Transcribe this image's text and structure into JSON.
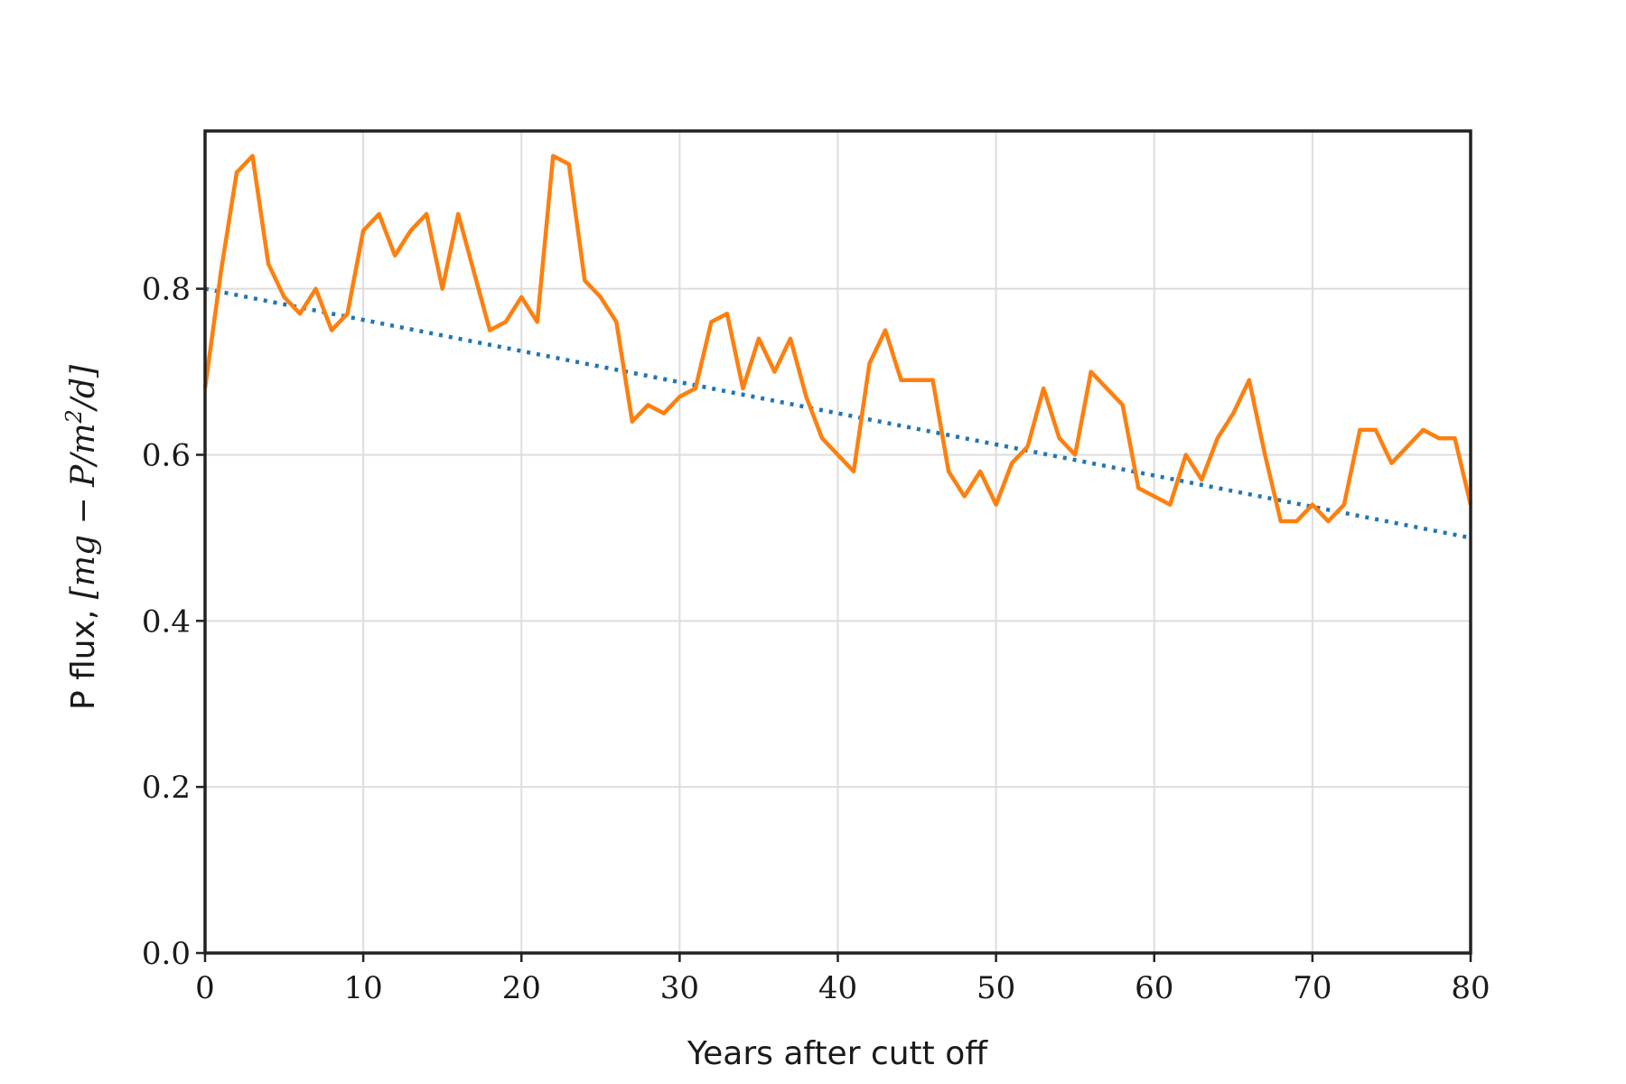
{
  "chart_data": {
    "type": "line",
    "xlabel": "Years after cutt off",
    "ylabel": {
      "prefix": "P flux, ",
      "math": "[mg − P/m",
      "sup": "2",
      "math_end": "/d]"
    },
    "xlim": [
      0,
      80
    ],
    "ylim": [
      0,
      0.99
    ],
    "xticks": [
      0,
      10,
      20,
      30,
      40,
      50,
      60,
      70,
      80
    ],
    "xtick_labels": [
      "0",
      "10",
      "20",
      "30",
      "40",
      "50",
      "60",
      "70",
      "80"
    ],
    "yticks": [
      0.0,
      0.2,
      0.4,
      0.6,
      0.8
    ],
    "ytick_labels": [
      "0.0",
      "0.2",
      "0.4",
      "0.6",
      "0.8"
    ],
    "grid": true,
    "series": [
      {
        "style": "solid",
        "color": "#ff7f0e",
        "x": [
          0,
          1,
          2,
          3,
          4,
          5,
          6,
          7,
          8,
          9,
          10,
          11,
          12,
          13,
          14,
          15,
          16,
          17,
          18,
          19,
          20,
          21,
          22,
          23,
          24,
          25,
          26,
          27,
          28,
          29,
          30,
          31,
          32,
          33,
          34,
          35,
          36,
          37,
          38,
          39,
          40,
          41,
          42,
          43,
          44,
          45,
          46,
          47,
          48,
          49,
          50,
          51,
          52,
          53,
          54,
          55,
          56,
          57,
          58,
          59,
          60,
          61,
          62,
          63,
          64,
          65,
          66,
          67,
          68,
          69,
          70,
          71,
          72,
          73,
          74,
          75,
          76,
          77,
          78,
          79,
          80
        ],
        "y": [
          0.68,
          0.82,
          0.94,
          0.96,
          0.83,
          0.79,
          0.77,
          0.8,
          0.75,
          0.77,
          0.87,
          0.89,
          0.84,
          0.87,
          0.89,
          0.8,
          0.89,
          0.82,
          0.75,
          0.76,
          0.79,
          0.76,
          0.96,
          0.95,
          0.81,
          0.79,
          0.76,
          0.64,
          0.66,
          0.65,
          0.67,
          0.68,
          0.76,
          0.77,
          0.68,
          0.74,
          0.7,
          0.74,
          0.67,
          0.62,
          0.6,
          0.58,
          0.71,
          0.75,
          0.69,
          0.69,
          0.69,
          0.58,
          0.55,
          0.58,
          0.54,
          0.59,
          0.61,
          0.68,
          0.62,
          0.6,
          0.7,
          0.68,
          0.66,
          0.56,
          0.55,
          0.54,
          0.6,
          0.57,
          0.62,
          0.65,
          0.69,
          0.6,
          0.52,
          0.52,
          0.54,
          0.52,
          0.54,
          0.63,
          0.63,
          0.59,
          0.61,
          0.63,
          0.62,
          0.62,
          0.54
        ]
      },
      {
        "style": "dotted",
        "color": "#1f77b4",
        "x": [
          0,
          80
        ],
        "y": [
          0.8,
          0.5
        ]
      }
    ]
  }
}
